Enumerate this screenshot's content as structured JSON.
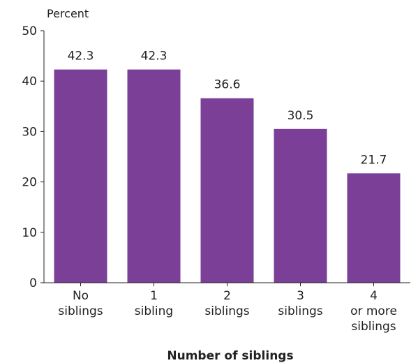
{
  "chart_data": {
    "type": "bar",
    "categories": [
      [
        "No",
        "siblings"
      ],
      [
        "1",
        "sibling"
      ],
      [
        "2",
        "siblings"
      ],
      [
        "3",
        "siblings"
      ],
      [
        "4",
        "or more",
        "siblings"
      ]
    ],
    "values": [
      42.3,
      42.3,
      36.6,
      30.5,
      21.7
    ],
    "value_labels": [
      "42.3",
      "42.3",
      "36.6",
      "30.5",
      "21.7"
    ],
    "ylabel": "Percent",
    "xlabel": "Number of siblings",
    "ylim": [
      0,
      50
    ],
    "yticks": [
      0,
      10,
      20,
      30,
      40,
      50
    ],
    "grid": false,
    "bar_color": "#7b3f98",
    "axis_color": "#222222"
  }
}
